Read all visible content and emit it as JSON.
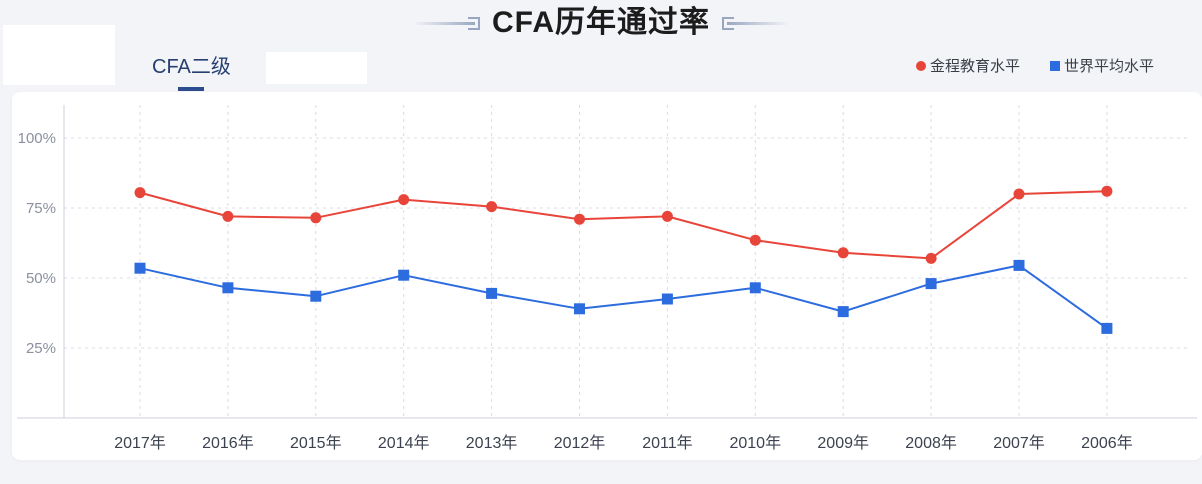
{
  "header": {
    "title": "CFA历年通过率"
  },
  "tabs": [
    {
      "label": "CFA二级",
      "active": true
    }
  ],
  "legend": {
    "items": [
      {
        "label": "金程教育水平",
        "marker": "circle",
        "color": "#e8453a"
      },
      {
        "label": "世界平均水平",
        "marker": "square",
        "color": "#2d6cdf"
      }
    ]
  },
  "colors": {
    "page_bg": "#f3f4f8",
    "card_bg": "#ffffff",
    "series_red": "#e8453a",
    "series_blue": "#2d6cdf",
    "grid_line": "#d9dce6",
    "axis_line": "#ccd0dc",
    "y_label": "#8a909e",
    "x_label": "#3d4250",
    "tab_underline": "#2b4d8e"
  },
  "chart_data": {
    "type": "line",
    "title": "CFA历年通过率",
    "categories": [
      "2017年",
      "2016年",
      "2015年",
      "2014年",
      "2013年",
      "2012年",
      "2011年",
      "2010年",
      "2009年",
      "2008年",
      "2007年",
      "2006年"
    ],
    "series": [
      {
        "name": "金程教育水平",
        "color": "#e8453a",
        "marker": "circle",
        "values": [
          80.5,
          72,
          71.5,
          78,
          75.5,
          71,
          72,
          63.5,
          59,
          57,
          80,
          81
        ]
      },
      {
        "name": "世界平均水平",
        "color": "#2d6cdf",
        "marker": "square",
        "values": [
          53.5,
          46.5,
          43.5,
          51,
          44.5,
          39,
          42.5,
          46.5,
          38,
          48,
          54.5,
          32
        ]
      }
    ],
    "ylabel": "",
    "xlabel": "",
    "yticks": [
      {
        "label": "100%",
        "value": 100
      },
      {
        "label": "75%",
        "value": 75
      },
      {
        "label": "50%",
        "value": 50
      },
      {
        "label": "25%",
        "value": 25
      }
    ],
    "ylim": [
      0,
      112
    ],
    "grid": true,
    "grid_style": "dashed",
    "legend_position": "top-right"
  }
}
